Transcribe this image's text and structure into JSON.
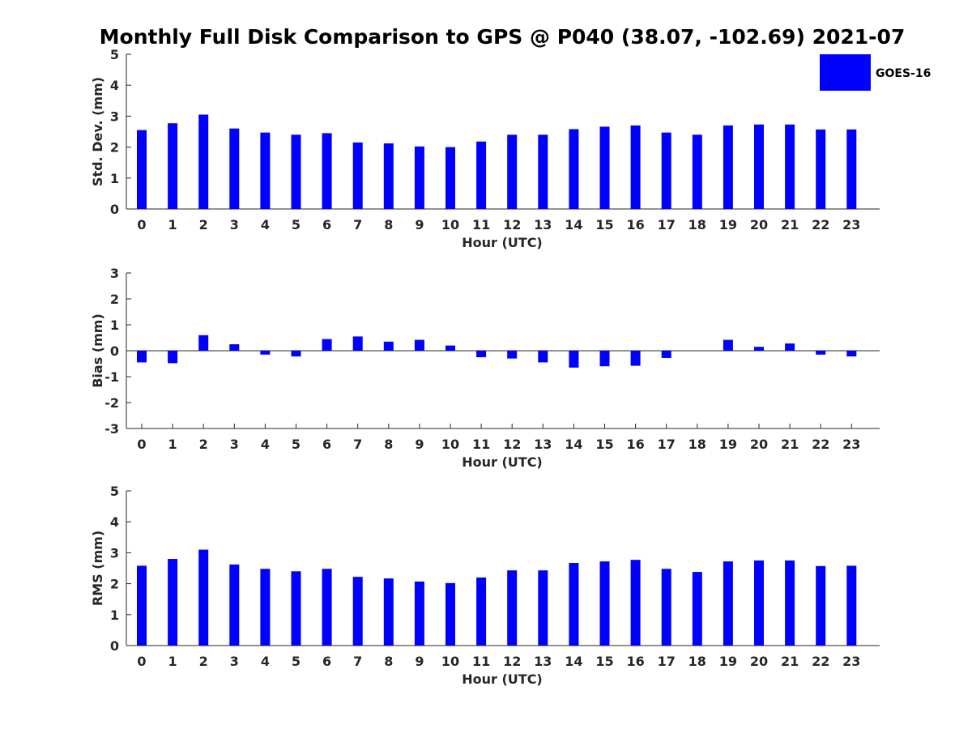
{
  "title": "Monthly Full Disk Comparison to GPS @ P040 (38.07, -102.69) 2021-07",
  "legend": {
    "label": "GOES-16",
    "color": "#0000ff"
  },
  "chart_data": [
    {
      "type": "bar",
      "xlabel": "Hour (UTC)",
      "ylabel": "Std. Dev. (mm)",
      "ylim": [
        0,
        5
      ],
      "yticks": [
        0,
        1,
        2,
        3,
        4,
        5
      ],
      "categories": [
        "0",
        "1",
        "2",
        "3",
        "4",
        "5",
        "6",
        "7",
        "8",
        "9",
        "10",
        "11",
        "12",
        "13",
        "14",
        "15",
        "16",
        "17",
        "18",
        "19",
        "20",
        "21",
        "22",
        "23"
      ],
      "series": [
        {
          "name": "GOES-16",
          "values": [
            2.55,
            2.77,
            3.05,
            2.6,
            2.47,
            2.4,
            2.45,
            2.15,
            2.12,
            2.02,
            2.0,
            2.18,
            2.4,
            2.4,
            2.58,
            2.66,
            2.7,
            2.47,
            2.4,
            2.7,
            2.73,
            2.73,
            2.57,
            2.57
          ]
        }
      ]
    },
    {
      "type": "bar",
      "xlabel": "Hour (UTC)",
      "ylabel": "Bias (mm)",
      "ylim": [
        -3,
        3
      ],
      "yticks": [
        -3,
        -2,
        -1,
        0,
        1,
        2,
        3
      ],
      "categories": [
        "0",
        "1",
        "2",
        "3",
        "4",
        "5",
        "6",
        "7",
        "8",
        "9",
        "10",
        "11",
        "12",
        "13",
        "14",
        "15",
        "16",
        "17",
        "18",
        "19",
        "20",
        "21",
        "22",
        "23"
      ],
      "series": [
        {
          "name": "GOES-16",
          "values": [
            -0.45,
            -0.48,
            0.6,
            0.25,
            -0.15,
            -0.22,
            0.45,
            0.55,
            0.35,
            0.42,
            0.2,
            -0.25,
            -0.3,
            -0.45,
            -0.65,
            -0.6,
            -0.58,
            -0.28,
            0.0,
            0.42,
            0.15,
            0.28,
            -0.15,
            -0.22
          ]
        }
      ]
    },
    {
      "type": "bar",
      "xlabel": "Hour (UTC)",
      "ylabel": "RMS (mm)",
      "ylim": [
        0,
        5
      ],
      "yticks": [
        0,
        1,
        2,
        3,
        4,
        5
      ],
      "categories": [
        "0",
        "1",
        "2",
        "3",
        "4",
        "5",
        "6",
        "7",
        "8",
        "9",
        "10",
        "11",
        "12",
        "13",
        "14",
        "15",
        "16",
        "17",
        "18",
        "19",
        "20",
        "21",
        "22",
        "23"
      ],
      "series": [
        {
          "name": "GOES-16",
          "values": [
            2.58,
            2.8,
            3.1,
            2.62,
            2.48,
            2.4,
            2.48,
            2.22,
            2.17,
            2.07,
            2.02,
            2.2,
            2.43,
            2.43,
            2.67,
            2.72,
            2.77,
            2.48,
            2.38,
            2.72,
            2.75,
            2.75,
            2.57,
            2.58
          ]
        }
      ]
    }
  ]
}
